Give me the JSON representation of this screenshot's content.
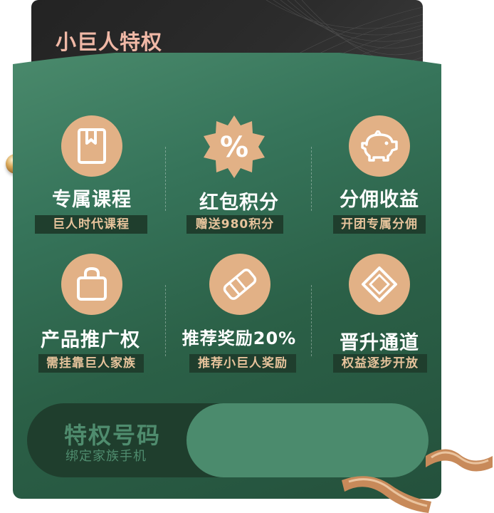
{
  "header": {
    "title": "小巨人特权"
  },
  "privileges": [
    {
      "icon": "bookmark-book-icon",
      "title": "专属课程",
      "tag": "巨人时代课程"
    },
    {
      "icon": "percent-badge-icon",
      "title": "红包积分",
      "tag": "赠送980积分"
    },
    {
      "icon": "piggy-bank-icon",
      "title": "分佣收益",
      "tag": "开团专属分佣"
    },
    {
      "icon": "shopping-bag-icon",
      "title": "产品推广权",
      "tag": "需挂靠巨人家族"
    },
    {
      "icon": "handshake-icon",
      "title": "推荐奖励20%",
      "tag": "推荐小巨人奖励"
    },
    {
      "icon": "diamond-icon",
      "title": "晋升通道",
      "tag": "权益逐步开放"
    }
  ],
  "binding": {
    "title": "特权号码",
    "subtitle": "绑定家族手机",
    "input_value": ""
  },
  "colors": {
    "card_green": "#36745a",
    "icon_peach": "#e2b186",
    "tag_bg": "#1f3e2d",
    "tag_text": "#e6c39b",
    "title_pink": "#f0b8a6"
  }
}
